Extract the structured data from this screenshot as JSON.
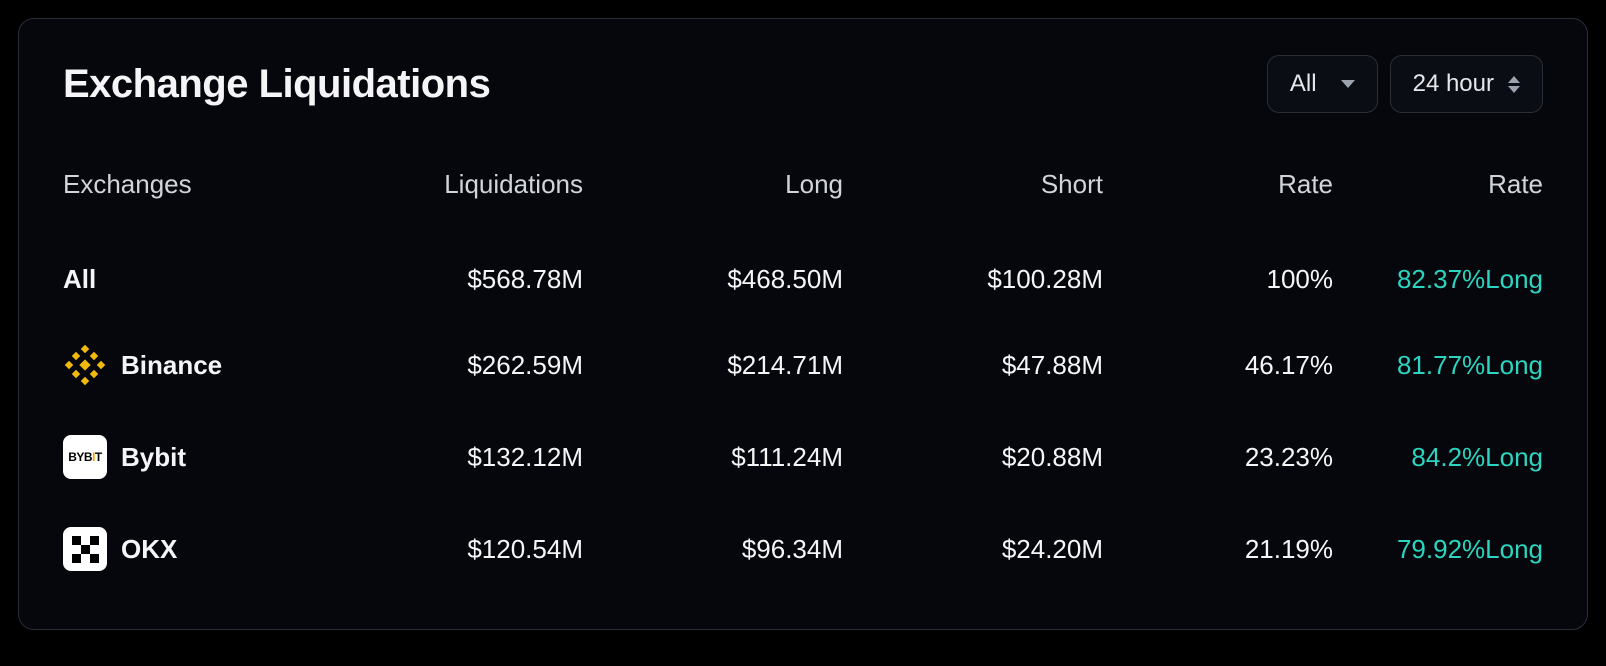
{
  "panel": {
    "title": "Exchange Liquidations",
    "filter_label": "All",
    "timeframe_label": "24 hour"
  },
  "table": {
    "columns": {
      "exchanges": "Exchanges",
      "liquidations": "Liquidations",
      "long": "Long",
      "short": "Short",
      "rate": "Rate",
      "rate2": "Rate"
    },
    "rows": [
      {
        "icon": "none",
        "name": "All",
        "liquidations": "$568.78M",
        "long": "$468.50M",
        "short": "$100.28M",
        "rate": "100%",
        "rate2_pct": "82.37%",
        "rate2_dir": "Long",
        "rate2_color": "#2dd4bf"
      },
      {
        "icon": "binance",
        "name": "Binance",
        "liquidations": "$262.59M",
        "long": "$214.71M",
        "short": "$47.88M",
        "rate": "46.17%",
        "rate2_pct": "81.77%",
        "rate2_dir": "Long",
        "rate2_color": "#2dd4bf"
      },
      {
        "icon": "bybit",
        "name": "Bybit",
        "liquidations": "$132.12M",
        "long": "$111.24M",
        "short": "$20.88M",
        "rate": "23.23%",
        "rate2_pct": "84.2%",
        "rate2_dir": "Long",
        "rate2_color": "#2dd4bf"
      },
      {
        "icon": "okx",
        "name": "OKX",
        "liquidations": "$120.54M",
        "long": "$96.34M",
        "short": "$24.20M",
        "rate": "21.19%",
        "rate2_pct": "79.92%",
        "rate2_dir": "Long",
        "rate2_color": "#2dd4bf"
      }
    ]
  },
  "style": {
    "background_color": "#000000",
    "card_background": "#05070c",
    "card_border": "#2a2d35",
    "text_primary": "#f5f5f7",
    "text_secondary": "#d1d5db",
    "accent_green": "#2dd4bf",
    "binance_color": "#f0b90b",
    "bybit_accent": "#f7a600"
  }
}
